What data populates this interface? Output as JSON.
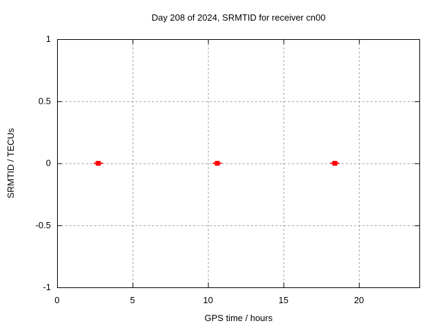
{
  "chart_data": {
    "type": "scatter",
    "title": "Day 208 of 2024, SRMTID for receiver cn00",
    "xlabel": "GPS time / hours",
    "ylabel": "SRMTID / TECUs",
    "xlim": [
      0,
      24
    ],
    "ylim": [
      -1,
      1
    ],
    "xticks": {
      "values": [
        0,
        5,
        10,
        15,
        20
      ],
      "labels": [
        "0",
        "5",
        "10",
        "15",
        "20"
      ]
    },
    "yticks": {
      "values": [
        -1,
        -0.5,
        0,
        0.5,
        1
      ],
      "labels": [
        "-1",
        "-0.5",
        "0",
        "0.5",
        "1"
      ]
    },
    "grid": true,
    "legend": "none",
    "series": [
      {
        "name": "SRMTID",
        "marker": "filled-square-with-x-errorbar",
        "color": "#ff0000",
        "points": [
          {
            "x": 2.73,
            "y": 0,
            "xerr": 0.3
          },
          {
            "x": 10.61,
            "y": 0,
            "xerr": 0.3
          },
          {
            "x": 18.4,
            "y": 0,
            "xerr": 0.3
          }
        ]
      }
    ],
    "colors": {
      "frame": "#000000",
      "grid": "#9e9e9e",
      "background": "#ffffff",
      "text": "#000000"
    }
  }
}
